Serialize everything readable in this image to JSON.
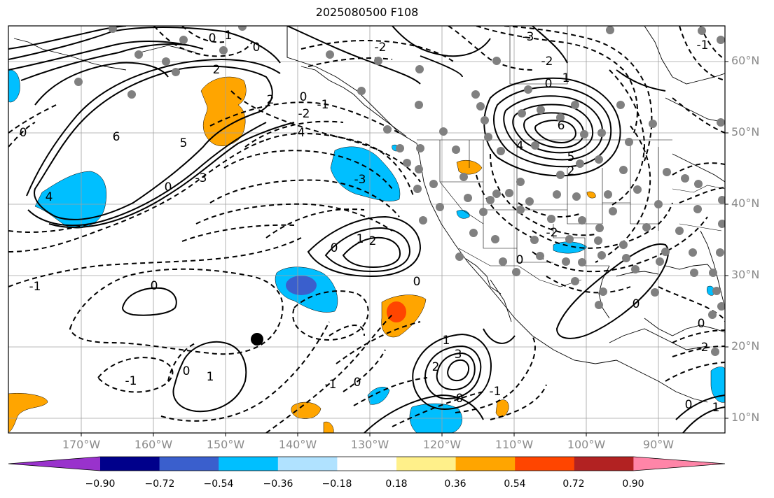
{
  "title": "2025080500 F108",
  "lat_labels": [
    "60°N",
    "50°N",
    "40°N",
    "30°N",
    "20°N",
    "10°N"
  ],
  "lon_labels": [
    "170°W",
    "160°W",
    "150°W",
    "140°W",
    "130°W",
    "120°W",
    "110°W",
    "100°W",
    "90°W"
  ],
  "contour_labels": [
    "-1",
    "0",
    "1",
    "2",
    "3",
    "4",
    "5",
    "6",
    "-2",
    "-3",
    "-4"
  ],
  "colorbar": {
    "ticks": [
      "−0.90",
      "−0.72",
      "−0.54",
      "−0.36",
      "−0.18",
      "0.18",
      "0.36",
      "0.54",
      "0.72",
      "0.90"
    ],
    "colors": [
      "#9932cc",
      "#00008b",
      "#3a5fcd",
      "#00bfff",
      "#b0e2ff",
      "#ffffff",
      "#fff08a",
      "#ffa500",
      "#ff4500",
      "#b22222",
      "#ff85a8"
    ]
  },
  "colors": {
    "station_dots": "#808080",
    "marker": "#000000",
    "grid": "#a0a0a0",
    "positive_contour": "#000000",
    "negative_contour": "#000000"
  }
}
